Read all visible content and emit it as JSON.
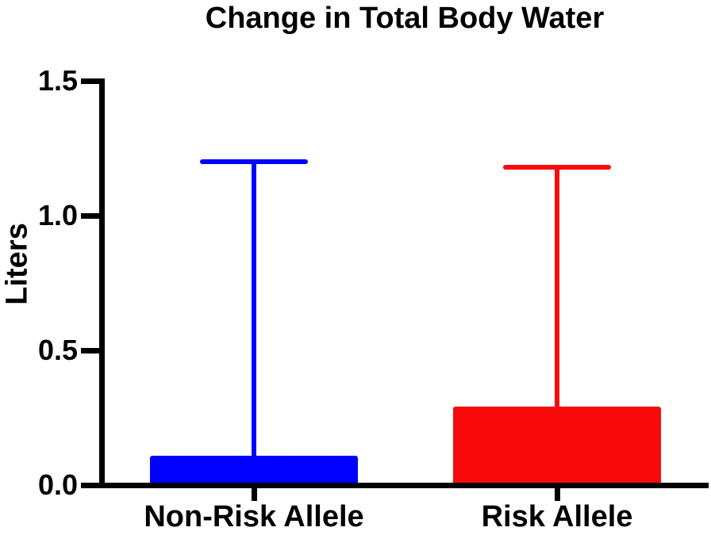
{
  "chart_data": {
    "type": "bar",
    "title": "Change in Total Body Water",
    "xlabel": "",
    "ylabel": "Liters",
    "categories": [
      "Non-Risk Allele",
      "Risk Allele"
    ],
    "values": [
      0.11,
      0.29
    ],
    "error_upper": [
      1.2,
      1.18
    ],
    "bar_colors": [
      "#0000FF",
      "#FA0B0B"
    ],
    "ylim": [
      0,
      1.5
    ],
    "yticks": [
      0,
      0.5,
      1.0,
      1.5
    ],
    "ytick_labels": [
      "0.0",
      "0.5",
      "1.0",
      "1.5"
    ],
    "grid": false,
    "legend": "none",
    "axis_color": "#000000",
    "background_color": "#FFFFFF",
    "error_bar_style": "upper-only, colored same as bar, rounded caps"
  }
}
